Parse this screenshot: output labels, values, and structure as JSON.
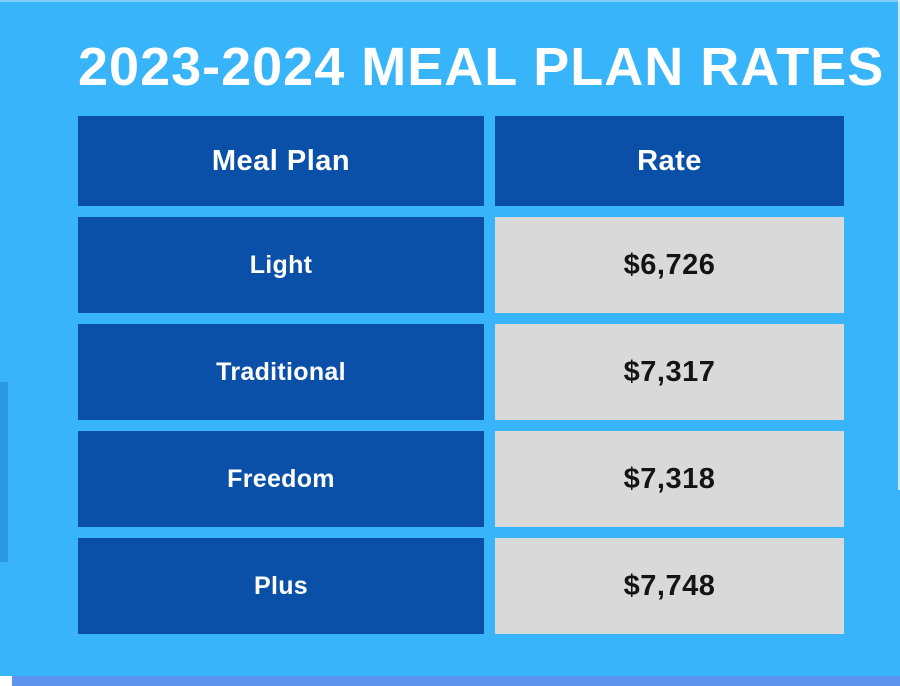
{
  "title": "2023-2024 MEAL PLAN RATES",
  "table": {
    "columns": [
      "Meal Plan",
      "Rate"
    ],
    "rows": [
      {
        "plan": "Light",
        "rate": "$6,726"
      },
      {
        "plan": "Traditional",
        "rate": "$7,317"
      },
      {
        "plan": "Freedom",
        "rate": "$7,318"
      },
      {
        "plan": "Plus",
        "rate": "$7,748"
      }
    ]
  },
  "colors": {
    "background": "#38b4fb",
    "cell_blue": "#0b50a8",
    "cell_gray": "#d9d9d9",
    "title_text": "#ffffff",
    "rate_text": "#141414",
    "bottom_bar": "#5e93ee"
  },
  "chart_data": {
    "type": "table",
    "title": "2023-2024 MEAL PLAN RATES",
    "columns": [
      "Meal Plan",
      "Rate"
    ],
    "rows": [
      [
        "Light",
        "$6,726"
      ],
      [
        "Traditional",
        "$7,317"
      ],
      [
        "Freedom",
        "$7,318"
      ],
      [
        "Plus",
        "$7,748"
      ]
    ],
    "values": {
      "Light": 6726,
      "Traditional": 7317,
      "Freedom": 7318,
      "Plus": 7748
    }
  }
}
